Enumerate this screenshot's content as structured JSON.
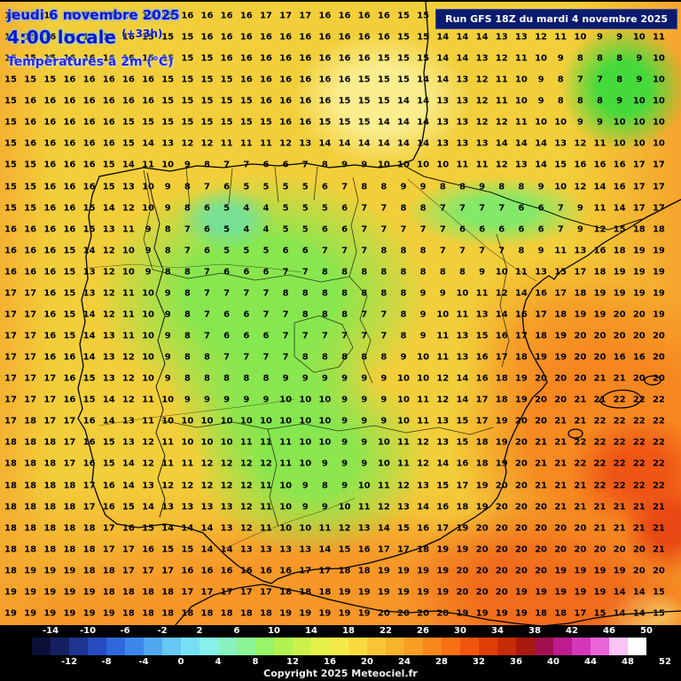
{
  "header": {
    "date": "jeudi 6 novembre 2025",
    "time": "4:00 locale",
    "forecast_offset": "(+33h)",
    "parameter": "Températures à 2m (°C)",
    "run": "Run GFS 18Z du mardi 4 novembre 2025"
  },
  "footer": {
    "copyright": "Copyright 2025 Meteociel.fr"
  },
  "legend": {
    "unit": "°C",
    "top_labels": [
      "-14",
      "-10",
      "-6",
      "-2",
      "2",
      "6",
      "10",
      "14",
      "18",
      "22",
      "26",
      "30",
      "34",
      "38",
      "42",
      "46",
      "50"
    ],
    "bottom_labels": [
      "-12",
      "-8",
      "-4",
      "0",
      "4",
      "8",
      "12",
      "16",
      "20",
      "24",
      "28",
      "32",
      "36",
      "40",
      "44",
      "48",
      "52"
    ],
    "colors": [
      "#0c1038",
      "#152060",
      "#1d3490",
      "#264cc0",
      "#2f68dd",
      "#3c88ea",
      "#51a8f0",
      "#66c8f4",
      "#78e0f6",
      "#86f0ea",
      "#8af2c0",
      "#8cf494",
      "#98f468",
      "#b2f252",
      "#ccf24a",
      "#e6f24a",
      "#f4ea48",
      "#f8da3e",
      "#f8c634",
      "#f8b22c",
      "#f89e24",
      "#f8881c",
      "#f87014",
      "#f0560e",
      "#e03e08",
      "#c62c06",
      "#a81a0e",
      "#a0104e",
      "#bc1c90",
      "#d438b8",
      "#e866d8",
      "#f8c4f4",
      "#ffffff"
    ]
  },
  "map_colors": {
    "base": "#f2cf3a",
    "green": "#7ee554",
    "orange": "#f6821e",
    "red": "#e8481a"
  },
  "temperature_grid": {
    "type": "heatmap",
    "title": "Températures à 2m (°C)",
    "rows": [
      [
        15,
        15,
        16,
        16,
        16,
        16,
        16,
        15,
        15,
        16,
        16,
        16,
        16,
        17,
        17,
        17,
        16,
        16,
        16,
        16,
        15,
        15,
        15,
        15,
        14,
        14,
        14,
        13,
        13,
        12,
        12,
        12,
        13,
        13
      ],
      [
        15,
        15,
        16,
        16,
        16,
        16,
        16,
        15,
        15,
        15,
        16,
        16,
        16,
        16,
        16,
        16,
        16,
        16,
        16,
        16,
        15,
        15,
        14,
        14,
        14,
        13,
        13,
        12,
        11,
        10,
        9,
        9,
        10,
        11
      ],
      [
        15,
        15,
        15,
        16,
        16,
        16,
        16,
        15,
        15,
        15,
        15,
        16,
        16,
        16,
        16,
        16,
        16,
        16,
        16,
        15,
        15,
        15,
        14,
        14,
        13,
        12,
        11,
        10,
        9,
        8,
        8,
        8,
        9,
        10
      ],
      [
        15,
        15,
        15,
        16,
        16,
        16,
        16,
        16,
        15,
        15,
        15,
        15,
        16,
        16,
        16,
        16,
        16,
        16,
        15,
        15,
        15,
        14,
        14,
        13,
        12,
        11,
        10,
        9,
        8,
        7,
        7,
        8,
        9,
        10
      ],
      [
        15,
        16,
        16,
        16,
        16,
        16,
        16,
        16,
        15,
        15,
        15,
        15,
        15,
        16,
        16,
        16,
        16,
        15,
        15,
        15,
        14,
        14,
        13,
        13,
        12,
        11,
        10,
        9,
        8,
        8,
        8,
        9,
        10,
        10
      ],
      [
        15,
        16,
        16,
        16,
        16,
        16,
        15,
        15,
        15,
        15,
        15,
        15,
        15,
        15,
        16,
        16,
        15,
        15,
        15,
        14,
        14,
        14,
        13,
        13,
        12,
        12,
        11,
        10,
        10,
        9,
        9,
        10,
        10,
        10
      ],
      [
        15,
        16,
        16,
        16,
        16,
        16,
        15,
        14,
        13,
        12,
        12,
        11,
        11,
        11,
        12,
        13,
        14,
        14,
        14,
        14,
        14,
        14,
        13,
        13,
        13,
        14,
        14,
        14,
        13,
        12,
        11,
        10,
        10,
        10
      ],
      [
        15,
        15,
        16,
        16,
        16,
        15,
        14,
        11,
        10,
        9,
        8,
        7,
        7,
        6,
        6,
        7,
        8,
        9,
        9,
        10,
        10,
        10,
        10,
        11,
        11,
        12,
        13,
        14,
        15,
        16,
        16,
        16,
        17,
        17
      ],
      [
        15,
        15,
        16,
        16,
        16,
        15,
        13,
        10,
        9,
        8,
        7,
        6,
        5,
        5,
        5,
        5,
        6,
        7,
        8,
        8,
        9,
        9,
        8,
        8,
        9,
        8,
        8,
        9,
        10,
        12,
        14,
        16,
        17,
        17
      ],
      [
        15,
        15,
        16,
        16,
        15,
        14,
        12,
        10,
        9,
        8,
        6,
        5,
        4,
        4,
        5,
        5,
        5,
        6,
        7,
        7,
        8,
        8,
        7,
        7,
        7,
        7,
        6,
        6,
        7,
        9,
        11,
        14,
        17,
        17
      ],
      [
        16,
        16,
        16,
        16,
        15,
        13,
        11,
        9,
        8,
        7,
        6,
        5,
        4,
        4,
        5,
        5,
        6,
        6,
        7,
        7,
        7,
        7,
        7,
        6,
        6,
        6,
        6,
        6,
        7,
        9,
        12,
        15,
        18,
        18
      ],
      [
        16,
        16,
        16,
        15,
        14,
        12,
        10,
        9,
        8,
        7,
        6,
        5,
        5,
        5,
        6,
        6,
        7,
        7,
        7,
        8,
        8,
        8,
        7,
        7,
        7,
        7,
        8,
        9,
        11,
        13,
        16,
        18,
        19,
        19
      ],
      [
        16,
        16,
        16,
        15,
        13,
        12,
        10,
        9,
        8,
        8,
        7,
        6,
        6,
        6,
        7,
        7,
        8,
        8,
        8,
        8,
        8,
        8,
        8,
        8,
        9,
        10,
        11,
        13,
        15,
        17,
        18,
        19,
        19,
        19
      ],
      [
        17,
        17,
        16,
        15,
        13,
        12,
        11,
        10,
        9,
        8,
        7,
        7,
        7,
        7,
        8,
        8,
        8,
        8,
        8,
        8,
        8,
        9,
        9,
        10,
        11,
        12,
        14,
        16,
        17,
        18,
        19,
        19,
        19,
        19
      ],
      [
        17,
        17,
        16,
        15,
        14,
        12,
        11,
        10,
        9,
        8,
        7,
        6,
        6,
        7,
        7,
        8,
        8,
        8,
        7,
        7,
        8,
        9,
        10,
        11,
        13,
        14,
        16,
        17,
        18,
        19,
        19,
        20,
        20,
        19
      ],
      [
        17,
        17,
        16,
        15,
        14,
        13,
        11,
        10,
        9,
        8,
        7,
        6,
        6,
        6,
        7,
        7,
        7,
        7,
        7,
        7,
        8,
        9,
        11,
        13,
        15,
        16,
        17,
        18,
        19,
        20,
        20,
        20,
        20,
        20
      ],
      [
        17,
        17,
        16,
        16,
        14,
        13,
        12,
        10,
        9,
        8,
        8,
        7,
        7,
        7,
        7,
        8,
        8,
        8,
        8,
        8,
        9,
        10,
        11,
        13,
        16,
        17,
        18,
        19,
        19,
        20,
        20,
        16,
        16,
        20
      ],
      [
        17,
        17,
        17,
        16,
        15,
        13,
        12,
        10,
        9,
        8,
        8,
        8,
        8,
        8,
        9,
        9,
        9,
        9,
        9,
        9,
        10,
        10,
        12,
        14,
        16,
        18,
        19,
        20,
        20,
        20,
        21,
        21,
        20,
        20
      ],
      [
        17,
        17,
        17,
        16,
        15,
        14,
        12,
        11,
        10,
        9,
        9,
        9,
        9,
        9,
        10,
        10,
        10,
        9,
        9,
        9,
        10,
        11,
        12,
        14,
        17,
        18,
        19,
        20,
        20,
        21,
        21,
        22,
        22,
        22
      ],
      [
        17,
        18,
        17,
        17,
        16,
        14,
        13,
        11,
        10,
        10,
        10,
        10,
        10,
        10,
        10,
        10,
        10,
        9,
        9,
        9,
        10,
        11,
        13,
        15,
        17,
        19,
        20,
        20,
        21,
        21,
        22,
        22,
        22,
        22
      ],
      [
        18,
        18,
        18,
        17,
        16,
        15,
        13,
        12,
        11,
        10,
        10,
        10,
        11,
        11,
        11,
        10,
        10,
        9,
        9,
        10,
        11,
        12,
        13,
        15,
        18,
        19,
        20,
        21,
        21,
        22,
        22,
        22,
        22,
        22
      ],
      [
        18,
        18,
        18,
        17,
        16,
        15,
        14,
        12,
        11,
        11,
        12,
        12,
        12,
        12,
        11,
        10,
        9,
        9,
        9,
        10,
        11,
        12,
        14,
        16,
        18,
        19,
        20,
        21,
        21,
        22,
        22,
        22,
        22,
        22
      ],
      [
        18,
        18,
        18,
        18,
        17,
        16,
        14,
        13,
        12,
        12,
        12,
        12,
        12,
        11,
        10,
        9,
        8,
        9,
        10,
        11,
        12,
        13,
        15,
        17,
        19,
        20,
        20,
        21,
        21,
        21,
        22,
        22,
        22,
        22
      ],
      [
        18,
        18,
        18,
        18,
        17,
        16,
        15,
        14,
        13,
        13,
        13,
        13,
        12,
        11,
        10,
        9,
        9,
        10,
        11,
        12,
        13,
        14,
        16,
        18,
        19,
        20,
        20,
        20,
        21,
        21,
        21,
        21,
        21,
        21
      ],
      [
        18,
        18,
        18,
        18,
        18,
        17,
        16,
        15,
        14,
        14,
        14,
        13,
        12,
        11,
        10,
        10,
        11,
        12,
        13,
        14,
        15,
        16,
        17,
        19,
        20,
        20,
        20,
        20,
        20,
        20,
        21,
        21,
        21,
        21
      ],
      [
        18,
        18,
        18,
        18,
        18,
        17,
        17,
        16,
        15,
        15,
        14,
        14,
        13,
        13,
        13,
        13,
        14,
        15,
        16,
        17,
        17,
        18,
        19,
        19,
        20,
        20,
        20,
        20,
        20,
        20,
        20,
        20,
        20,
        21
      ],
      [
        18,
        19,
        19,
        19,
        18,
        18,
        17,
        17,
        17,
        16,
        16,
        16,
        16,
        16,
        16,
        17,
        17,
        18,
        18,
        19,
        19,
        19,
        19,
        20,
        20,
        20,
        20,
        20,
        19,
        19,
        19,
        19,
        20,
        20
      ],
      [
        19,
        19,
        19,
        19,
        19,
        18,
        18,
        18,
        18,
        17,
        17,
        17,
        17,
        17,
        18,
        18,
        18,
        19,
        19,
        19,
        19,
        19,
        19,
        20,
        20,
        20,
        19,
        19,
        19,
        19,
        19,
        14,
        14,
        15
      ],
      [
        19,
        19,
        19,
        19,
        19,
        19,
        18,
        18,
        18,
        18,
        18,
        18,
        18,
        18,
        19,
        19,
        19,
        19,
        19,
        20,
        20,
        20,
        20,
        19,
        19,
        19,
        19,
        18,
        18,
        17,
        15,
        14,
        14,
        15
      ]
    ]
  }
}
